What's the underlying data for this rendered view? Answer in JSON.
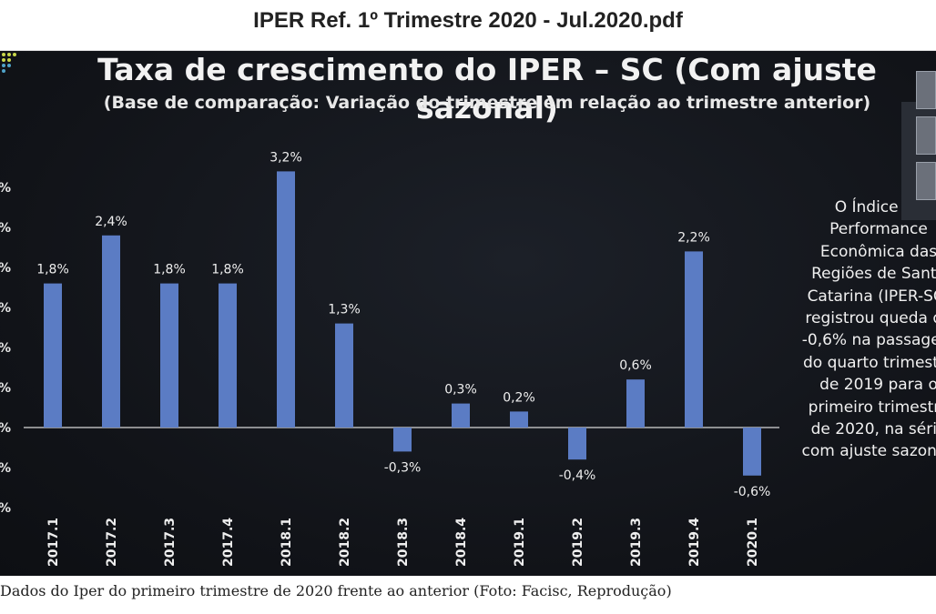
{
  "document": {
    "title": "IPER Ref. 1º Trimestre 2020 - Jul.2020.pdf"
  },
  "slide": {
    "title": "Taxa de crescimento do IPER – SC (Com ajuste sazonal)",
    "subtitle": "(Base de comparação: Variação do trimestre em relação ao trimestre anterior)",
    "side_text": "O Índice de Performance Econômica das Regiões de Santa Catarina (IPER-SC) registrou queda de -0,6% na passagem do quarto trimestre de 2019 para o primeiro trimestre de 2020, na série com ajuste sazonal.",
    "y_tick_suffix": "%"
  },
  "chart_data": {
    "type": "bar",
    "title": "Taxa de crescimento do IPER – SC (Com ajuste sazonal)",
    "subtitle": "(Base de comparação: Variação do trimestre em relação ao trimestre anterior)",
    "categories": [
      "2017.1",
      "2017.2",
      "2017.3",
      "2017.4",
      "2018.1",
      "2018.2",
      "2018.3",
      "2018.4",
      "2019.1",
      "2019.2",
      "2019.3",
      "2019.4",
      "2020.1"
    ],
    "values": [
      1.8,
      2.4,
      1.8,
      1.8,
      3.2,
      1.3,
      -0.3,
      0.3,
      0.2,
      -0.4,
      0.6,
      2.2,
      -0.6
    ],
    "data_labels": [
      "1,8%",
      "2,4%",
      "1,8%",
      "1,8%",
      "3,2%",
      "1,3%",
      "-0,3%",
      "0,3%",
      "0,2%",
      "-0,4%",
      "0,6%",
      "2,2%",
      "-0,6%"
    ],
    "ylim": [
      -1.0,
      3.5
    ],
    "grid": false,
    "legend": "none",
    "bar_color": "#5b7cc4"
  },
  "caption": "Dados do Iper do primeiro trimestre de 2020 frente ao anterior (Foto: Facisc, Reprodução)"
}
